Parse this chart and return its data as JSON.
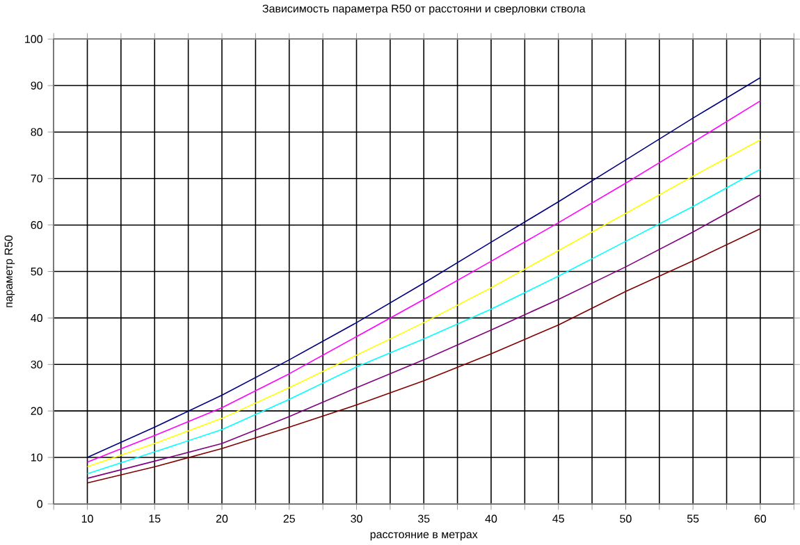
{
  "chart_data": {
    "type": "line",
    "title": "Зависимость параметра R50 от расстояни и сверловки ствола",
    "xlabel": "расстояние в метрах",
    "ylabel": "параметр R50",
    "x": [
      10,
      15,
      20,
      25,
      30,
      35,
      40,
      45,
      50,
      55,
      60
    ],
    "xlim": [
      7.5,
      62.5
    ],
    "xticks": [
      {
        "value": 7.5,
        "label": null
      },
      10,
      {
        "value": 12.5,
        "label": null
      },
      15,
      {
        "value": 17.5,
        "label": null
      },
      20,
      {
        "value": 22.5,
        "label": null
      },
      25,
      {
        "value": 27.5,
        "label": null
      },
      30,
      {
        "value": 32.5,
        "label": null
      },
      35,
      {
        "value": 37.5,
        "label": null
      },
      40,
      {
        "value": 42.5,
        "label": null
      },
      45,
      {
        "value": 47.5,
        "label": null
      },
      50,
      {
        "value": 52.5,
        "label": null
      },
      55,
      {
        "value": 57.5,
        "label": null
      },
      60,
      {
        "value": 62.5,
        "label": null
      }
    ],
    "ylim": [
      0,
      100
    ],
    "yticks": [
      0,
      10,
      20,
      30,
      40,
      50,
      60,
      70,
      80,
      90,
      100
    ],
    "grid": true,
    "marker": "none",
    "line_style": "solid",
    "series": [
      {
        "color": "#000080",
        "values": [
          10,
          16.5,
          23.4,
          31,
          39,
          47.5,
          56.3,
          65,
          74,
          83,
          91.7
        ]
      },
      {
        "color": "#ff00ff",
        "values": [
          9,
          14.7,
          20.7,
          28,
          36,
          44,
          52.2,
          60.5,
          69,
          77.8,
          86.7
        ]
      },
      {
        "color": "#ffff00",
        "values": [
          8,
          13,
          18.4,
          25,
          32,
          39,
          46.5,
          54.5,
          62.5,
          70.5,
          78.3
        ]
      },
      {
        "color": "#00ffff",
        "values": [
          6.5,
          11.2,
          16,
          22.5,
          29.5,
          35.5,
          41.9,
          49,
          56.5,
          64,
          72
        ]
      },
      {
        "color": "#800080",
        "values": [
          5.5,
          9.2,
          13,
          18.8,
          25,
          31,
          37.4,
          44,
          51,
          58.5,
          66.5
        ]
      },
      {
        "color": "#800000",
        "values": [
          4.5,
          8,
          11.9,
          16.5,
          21.3,
          26.5,
          32.3,
          38.5,
          45.7,
          52.3,
          59.2
        ]
      }
    ]
  }
}
